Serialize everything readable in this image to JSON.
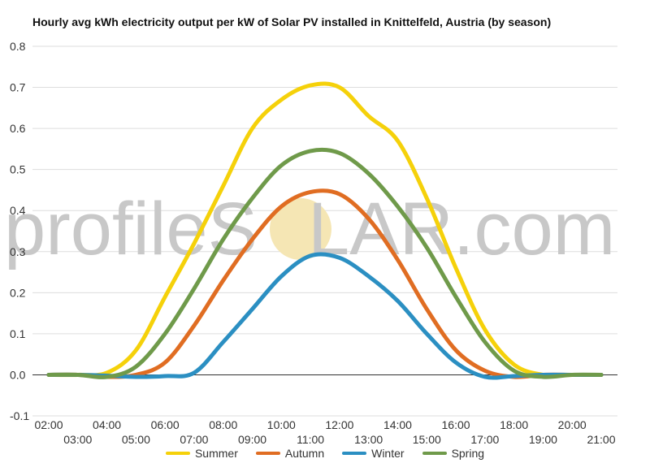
{
  "chart_data": {
    "type": "line",
    "title": "Hourly avg kWh electricity output per kW of Solar PV installed in Knittelfeld, Austria (by season)",
    "xlabel": "",
    "ylabel": "",
    "ylim": [
      -0.1,
      0.8
    ],
    "yticks": [
      "-0.1",
      "0.0",
      "0.1",
      "0.2",
      "0.3",
      "0.4",
      "0.5",
      "0.6",
      "0.7",
      "0.8"
    ],
    "x": [
      "02:00",
      "03:00",
      "04:00",
      "05:00",
      "06:00",
      "07:00",
      "08:00",
      "09:00",
      "10:00",
      "11:00",
      "12:00",
      "13:00",
      "14:00",
      "15:00",
      "16:00",
      "17:00",
      "18:00",
      "19:00",
      "20:00",
      "21:00"
    ],
    "grid": true,
    "legend_position": "bottom",
    "series": [
      {
        "name": "Summer",
        "color": "#f5d10a",
        "values": [
          0,
          0,
          0.005,
          0.06,
          0.19,
          0.32,
          0.46,
          0.6,
          0.67,
          0.705,
          0.7,
          0.63,
          0.57,
          0.43,
          0.26,
          0.11,
          0.025,
          0,
          0,
          0
        ]
      },
      {
        "name": "Autumn",
        "color": "#e06d22",
        "values": [
          0,
          0,
          -0.005,
          0,
          0.03,
          0.12,
          0.23,
          0.33,
          0.41,
          0.445,
          0.44,
          0.38,
          0.28,
          0.16,
          0.06,
          0.01,
          -0.005,
          0,
          0,
          0
        ]
      },
      {
        "name": "Winter",
        "color": "#2b8fc2",
        "values": [
          0,
          0,
          -0.002,
          -0.005,
          -0.003,
          0.005,
          0.08,
          0.16,
          0.24,
          0.29,
          0.285,
          0.24,
          0.18,
          0.1,
          0.03,
          -0.005,
          -0.003,
          0,
          0,
          0
        ]
      },
      {
        "name": "Spring",
        "color": "#6f9a4a",
        "values": [
          0,
          0,
          -0.005,
          0.02,
          0.1,
          0.21,
          0.33,
          0.43,
          0.51,
          0.545,
          0.54,
          0.49,
          0.41,
          0.31,
          0.19,
          0.08,
          0.01,
          -0.005,
          0,
          0
        ]
      }
    ]
  },
  "watermark": {
    "part1": "profileS",
    "part2": "LAR.com",
    "sun_color": "#f5e6b4"
  }
}
